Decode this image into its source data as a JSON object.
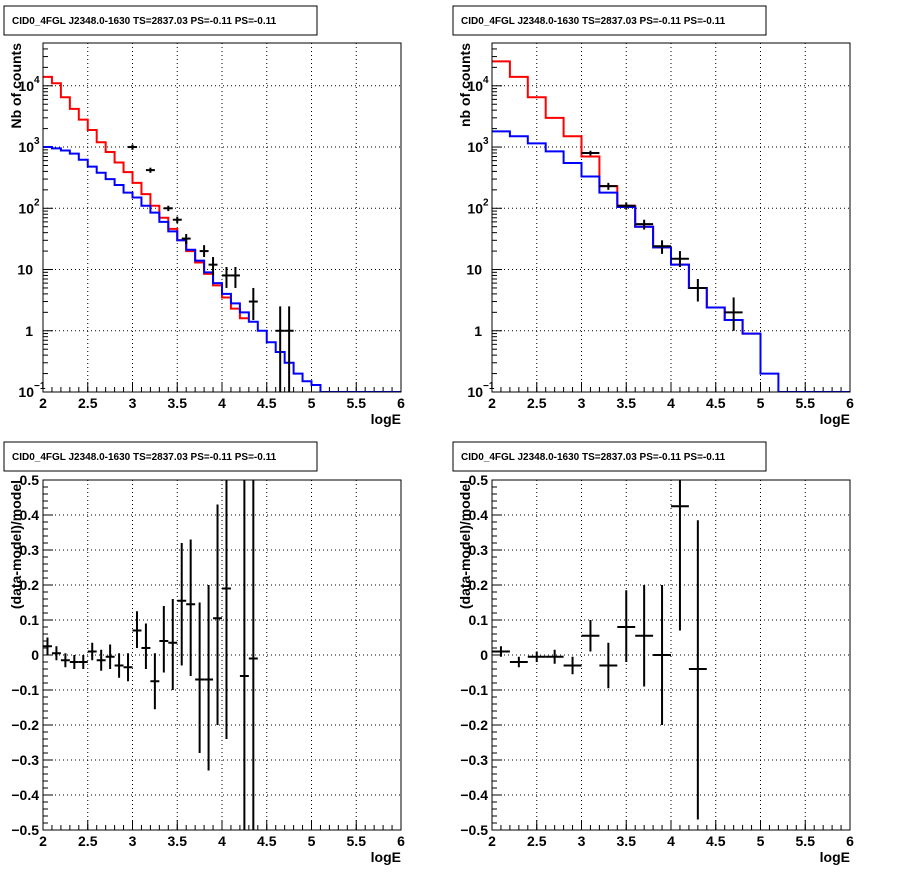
{
  "panels": [
    {
      "title": "CID0_4FGL J2348.0-1630 TS=2837.03 PS=-0.11 PS=-0.11"
    },
    {
      "title": "CID0_4FGL J2348.0-1630 TS=2837.03 PS=-0.11 PS=-0.11"
    },
    {
      "title": "CID0_4FGL J2348.0-1630 TS=2837.03 PS=-0.11 PS=-0.11"
    },
    {
      "title": "CID0_4FGL J2348.0-1630 TS=2837.03 PS=-0.11 PS=-0.11"
    }
  ],
  "colors": {
    "red_model": "#ff0000",
    "blue_model": "#0000ff",
    "data": "#000000"
  },
  "chart_data": [
    {
      "type": "line",
      "title": "CID0_4FGL J2348.0-1630 TS=2837.03 PS=-0.11 PS=-0.11",
      "xlabel": "logE",
      "ylabel": "Nb of counts",
      "xlim": [
        2,
        6
      ],
      "ylim": [
        0.1,
        50000
      ],
      "yscale": "log",
      "grid": true,
      "xticks": [
        "2",
        "2.5",
        "3",
        "3.5",
        "4",
        "4.5",
        "5",
        "5.5",
        "6"
      ],
      "yticks": [
        {
          "base": "10",
          "exp": "−1",
          "v": 0.1
        },
        {
          "base": "1",
          "exp": "",
          "v": 1
        },
        {
          "base": "10",
          "exp": "",
          "v": 10
        },
        {
          "base": "10",
          "exp": "2",
          "v": 100
        },
        {
          "base": "10",
          "exp": "3",
          "v": 1000
        },
        {
          "base": "10",
          "exp": "4",
          "v": 10000
        }
      ],
      "bin_edges": [
        2.0,
        2.1,
        2.2,
        2.3,
        2.4,
        2.5,
        2.6,
        2.7,
        2.8,
        2.9,
        3.0,
        3.1,
        3.2,
        3.3,
        3.4,
        3.5,
        3.6,
        3.7,
        3.8,
        3.9,
        4.0,
        4.1,
        4.2,
        4.3,
        4.4,
        4.5,
        4.6,
        4.7,
        4.8,
        4.9,
        5.0,
        5.1,
        5.2,
        5.3,
        5.4,
        5.5,
        5.6,
        5.7,
        5.8,
        5.9,
        6.0
      ],
      "series": [
        {
          "name": "",
          "color": "#ff0000",
          "values": [
            14000,
            11000,
            6500,
            4200,
            2800,
            1900,
            1200,
            830,
            560,
            390,
            260,
            170,
            110,
            70,
            46,
            30,
            20,
            13,
            8.5,
            5.5,
            3.5,
            2.3,
            1.6
          ]
        },
        {
          "name": "",
          "color": "#0000ff",
          "values": [
            1000,
            950,
            880,
            780,
            620,
            480,
            380,
            300,
            240,
            180,
            150,
            110,
            85,
            60,
            42,
            30,
            21,
            14,
            9,
            6,
            4,
            2.8,
            2,
            1.4,
            1.0,
            0.65,
            0.45,
            0.3,
            0.2,
            0.15,
            0.13,
            0.1,
            0.1,
            0.1,
            0.1,
            0.1,
            0.1,
            0.1,
            0.1,
            0.1
          ]
        }
      ],
      "data_points": [
        {
          "x": 3.0,
          "y": 1000,
          "xerr": 0.05,
          "ylo": 900,
          "yhi": 1100
        },
        {
          "x": 3.2,
          "y": 420,
          "xerr": 0.05,
          "ylo": 380,
          "yhi": 460
        },
        {
          "x": 3.4,
          "y": 100,
          "xerr": 0.05,
          "ylo": 90,
          "yhi": 110
        },
        {
          "x": 3.5,
          "y": 65,
          "xerr": 0.05,
          "ylo": 57,
          "yhi": 73
        },
        {
          "x": 3.6,
          "y": 32,
          "xerr": 0.05,
          "ylo": 26,
          "yhi": 38
        },
        {
          "x": 3.8,
          "y": 20,
          "xerr": 0.05,
          "ylo": 16,
          "yhi": 25
        },
        {
          "x": 3.9,
          "y": 12,
          "xerr": 0.05,
          "ylo": 8,
          "yhi": 16
        },
        {
          "x": 4.05,
          "y": 8,
          "xerr": 0.05,
          "ylo": 5,
          "yhi": 11
        },
        {
          "x": 4.15,
          "y": 8,
          "xerr": 0.05,
          "ylo": 5,
          "yhi": 11
        },
        {
          "x": 4.35,
          "y": 3,
          "xerr": 0.05,
          "ylo": 1.5,
          "yhi": 5
        },
        {
          "x": 4.65,
          "y": 1,
          "xerr": 0.05,
          "ylo": 0.1,
          "yhi": 2.5
        },
        {
          "x": 4.75,
          "y": 1,
          "xerr": 0.05,
          "ylo": 0.1,
          "yhi": 2.5
        }
      ]
    },
    {
      "type": "line",
      "title": "CID0_4FGL J2348.0-1630 TS=2837.03 PS=-0.11 PS=-0.11",
      "xlabel": "logE",
      "ylabel": "nb of counts",
      "xlim": [
        2,
        6
      ],
      "ylim": [
        0.1,
        50000
      ],
      "yscale": "log",
      "grid": true,
      "xticks": [
        "2",
        "2.5",
        "3",
        "3.5",
        "4",
        "4.5",
        "5",
        "5.5",
        "6"
      ],
      "yticks": [
        {
          "base": "10",
          "exp": "−1",
          "v": 0.1
        },
        {
          "base": "1",
          "exp": "",
          "v": 1
        },
        {
          "base": "10",
          "exp": "",
          "v": 10
        },
        {
          "base": "10",
          "exp": "2",
          "v": 100
        },
        {
          "base": "10",
          "exp": "3",
          "v": 1000
        },
        {
          "base": "10",
          "exp": "4",
          "v": 10000
        }
      ],
      "bin_edges": [
        2.0,
        2.2,
        2.4,
        2.6,
        2.8,
        3.0,
        3.2,
        3.4,
        3.6,
        3.8,
        4.0,
        4.2,
        4.4,
        4.6,
        4.8,
        5.0,
        5.2,
        5.4,
        5.6,
        5.8,
        6.0
      ],
      "series": [
        {
          "name": "",
          "color": "#ff0000",
          "values": [
            25000,
            14000,
            6500,
            3000,
            1500,
            700,
            230,
            110,
            50,
            23,
            12,
            5,
            2.4,
            1.5,
            0.9
          ]
        },
        {
          "name": "",
          "color": "#0000ff",
          "values": [
            1800,
            1500,
            1150,
            850,
            550,
            330,
            180,
            105,
            50,
            23,
            12,
            5,
            2.4,
            1.5,
            0.9,
            0.2,
            0.1,
            0.1,
            0.1,
            0.1
          ]
        }
      ],
      "data_points": [
        {
          "x": 3.1,
          "y": 800,
          "xerr": 0.1,
          "ylo": 730,
          "yhi": 870
        },
        {
          "x": 3.3,
          "y": 230,
          "xerr": 0.1,
          "ylo": 200,
          "yhi": 260
        },
        {
          "x": 3.5,
          "y": 110,
          "xerr": 0.1,
          "ylo": 95,
          "yhi": 125
        },
        {
          "x": 3.7,
          "y": 55,
          "xerr": 0.1,
          "ylo": 45,
          "yhi": 65
        },
        {
          "x": 3.9,
          "y": 24,
          "xerr": 0.1,
          "ylo": 18,
          "yhi": 30
        },
        {
          "x": 4.1,
          "y": 15,
          "xerr": 0.1,
          "ylo": 11,
          "yhi": 20
        },
        {
          "x": 4.3,
          "y": 5,
          "xerr": 0.1,
          "ylo": 3,
          "yhi": 7
        },
        {
          "x": 4.7,
          "y": 2,
          "xerr": 0.1,
          "ylo": 1,
          "yhi": 3.5
        }
      ]
    },
    {
      "type": "scatter",
      "title": "CID0_4FGL J2348.0-1630 TS=2837.03 PS=-0.11 PS=-0.11",
      "xlabel": "logE",
      "ylabel": "(data-model)/model",
      "xlim": [
        2,
        6
      ],
      "ylim": [
        -0.5,
        0.5
      ],
      "grid": true,
      "xticks": [
        "2",
        "2.5",
        "3",
        "3.5",
        "4",
        "4.5",
        "5",
        "5.5",
        "6"
      ],
      "yticks": [
        "−0.5",
        "−0.4",
        "−0.3",
        "−0.2",
        "−0.1",
        "0",
        "0.1",
        "0.2",
        "0.3",
        "0.4",
        "0.5"
      ],
      "data_points": [
        {
          "x": 2.05,
          "y": 0.025,
          "xerr": 0.05,
          "ylo": 0.0,
          "yhi": 0.05
        },
        {
          "x": 2.15,
          "y": 0.005,
          "xerr": 0.05,
          "ylo": -0.015,
          "yhi": 0.025
        },
        {
          "x": 2.25,
          "y": -0.015,
          "xerr": 0.05,
          "ylo": -0.035,
          "yhi": 0.005
        },
        {
          "x": 2.35,
          "y": -0.02,
          "xerr": 0.05,
          "ylo": -0.04,
          "yhi": 0.0
        },
        {
          "x": 2.45,
          "y": -0.02,
          "xerr": 0.05,
          "ylo": -0.04,
          "yhi": 0.0
        },
        {
          "x": 2.55,
          "y": 0.01,
          "xerr": 0.05,
          "ylo": -0.015,
          "yhi": 0.035
        },
        {
          "x": 2.65,
          "y": -0.015,
          "xerr": 0.05,
          "ylo": -0.045,
          "yhi": 0.015
        },
        {
          "x": 2.75,
          "y": -0.005,
          "xerr": 0.05,
          "ylo": -0.04,
          "yhi": 0.03
        },
        {
          "x": 2.85,
          "y": -0.03,
          "xerr": 0.05,
          "ylo": -0.065,
          "yhi": 0.005
        },
        {
          "x": 2.95,
          "y": -0.035,
          "xerr": 0.05,
          "ylo": -0.075,
          "yhi": 0.005
        },
        {
          "x": 3.05,
          "y": 0.07,
          "xerr": 0.05,
          "ylo": 0.02,
          "yhi": 0.125
        },
        {
          "x": 3.15,
          "y": 0.02,
          "xerr": 0.05,
          "ylo": -0.04,
          "yhi": 0.09
        },
        {
          "x": 3.25,
          "y": -0.075,
          "xerr": 0.05,
          "ylo": -0.155,
          "yhi": 0.005
        },
        {
          "x": 3.35,
          "y": 0.04,
          "xerr": 0.05,
          "ylo": -0.05,
          "yhi": 0.14
        },
        {
          "x": 3.45,
          "y": 0.035,
          "xerr": 0.05,
          "ylo": -0.1,
          "yhi": 0.16
        },
        {
          "x": 3.55,
          "y": 0.155,
          "xerr": 0.05,
          "ylo": -0.03,
          "yhi": 0.32
        },
        {
          "x": 3.65,
          "y": 0.145,
          "xerr": 0.05,
          "ylo": -0.06,
          "yhi": 0.33
        },
        {
          "x": 3.75,
          "y": -0.07,
          "xerr": 0.05,
          "ylo": -0.28,
          "yhi": 0.15
        },
        {
          "x": 3.85,
          "y": -0.07,
          "xerr": 0.05,
          "ylo": -0.33,
          "yhi": 0.2
        },
        {
          "x": 3.95,
          "y": 0.105,
          "xerr": 0.05,
          "ylo": -0.2,
          "yhi": 0.43
        },
        {
          "x": 4.05,
          "y": 0.19,
          "xerr": 0.05,
          "ylo": -0.24,
          "yhi": 0.5
        },
        {
          "x": 4.25,
          "y": -0.06,
          "xerr": 0.05,
          "ylo": -0.5,
          "yhi": 0.5
        },
        {
          "x": 4.35,
          "y": -0.01,
          "xerr": 0.05,
          "ylo": -0.5,
          "yhi": 0.5
        }
      ]
    },
    {
      "type": "scatter",
      "title": "CID0_4FGL J2348.0-1630 TS=2837.03 PS=-0.11 PS=-0.11",
      "xlabel": "logE",
      "ylabel": "(data-model)/model",
      "xlim": [
        2,
        6
      ],
      "ylim": [
        -0.5,
        0.5
      ],
      "grid": true,
      "xticks": [
        "2",
        "2.5",
        "3",
        "3.5",
        "4",
        "4.5",
        "5",
        "5.5",
        "6"
      ],
      "yticks": [
        "−0.5",
        "−0.4",
        "−0.3",
        "−0.2",
        "−0.1",
        "0",
        "0.1",
        "0.2",
        "0.3",
        "0.4",
        "0.5"
      ],
      "data_points": [
        {
          "x": 2.1,
          "y": 0.01,
          "xerr": 0.1,
          "ylo": -0.005,
          "yhi": 0.025
        },
        {
          "x": 2.3,
          "y": -0.02,
          "xerr": 0.1,
          "ylo": -0.035,
          "yhi": -0.005
        },
        {
          "x": 2.5,
          "y": -0.005,
          "xerr": 0.1,
          "ylo": -0.02,
          "yhi": 0.01
        },
        {
          "x": 2.7,
          "y": -0.005,
          "xerr": 0.1,
          "ylo": -0.025,
          "yhi": 0.015
        },
        {
          "x": 2.9,
          "y": -0.03,
          "xerr": 0.1,
          "ylo": -0.055,
          "yhi": -0.005
        },
        {
          "x": 3.1,
          "y": 0.055,
          "xerr": 0.1,
          "ylo": 0.01,
          "yhi": 0.1
        },
        {
          "x": 3.3,
          "y": -0.03,
          "xerr": 0.1,
          "ylo": -0.095,
          "yhi": 0.035
        },
        {
          "x": 3.5,
          "y": 0.08,
          "xerr": 0.1,
          "ylo": -0.02,
          "yhi": 0.185
        },
        {
          "x": 3.7,
          "y": 0.055,
          "xerr": 0.1,
          "ylo": -0.09,
          "yhi": 0.2
        },
        {
          "x": 3.9,
          "y": 0.0,
          "xerr": 0.1,
          "ylo": -0.2,
          "yhi": 0.2
        },
        {
          "x": 4.1,
          "y": 0.425,
          "xerr": 0.1,
          "ylo": 0.07,
          "yhi": 0.5
        },
        {
          "x": 4.3,
          "y": -0.04,
          "xerr": 0.1,
          "ylo": -0.47,
          "yhi": 0.385
        }
      ]
    }
  ]
}
